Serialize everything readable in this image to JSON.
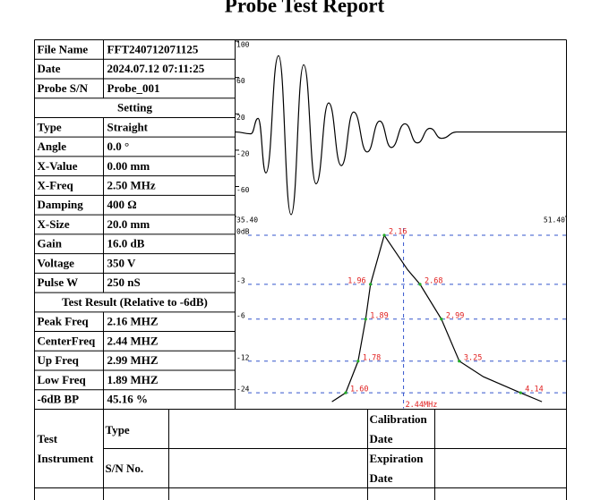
{
  "title": "Probe Test Report",
  "info_table": {
    "rows": [
      [
        "File Name",
        "FFT240712071125"
      ],
      [
        "Date",
        "2024.07.12 07:11:25"
      ],
      [
        "Probe S/N",
        "Probe_001"
      ],
      [
        "Setting"
      ],
      [
        "Type",
        "Straight"
      ],
      [
        "Angle",
        "0.0  °"
      ],
      [
        "X-Value",
        "0.00 mm"
      ],
      [
        "X-Freq",
        "2.50 MHz"
      ],
      [
        "Damping",
        "400 Ω"
      ],
      [
        "X-Size",
        "20.0 mm"
      ],
      [
        "Gain",
        "16.0 dB"
      ],
      [
        "Voltage",
        "350 V"
      ],
      [
        "Pulse W",
        "250 nS"
      ],
      [
        "Test Result (Relative to -6dB)"
      ],
      [
        "Peak Freq",
        "2.16 MHZ"
      ],
      [
        "CenterFreq",
        "2.44 MHZ"
      ],
      [
        "Up Freq",
        "2.99 MHZ"
      ],
      [
        "Low Freq",
        "1.89 MHZ"
      ],
      [
        "-6dB BP",
        "45.16 %"
      ]
    ]
  },
  "waveform": {
    "type": "line",
    "color": "#000000",
    "x": [
      35.4,
      36.14,
      36.49,
      36.87,
      37.48,
      38.09,
      38.7,
      39.3,
      39.91,
      40.52,
      41.12,
      41.77,
      42.38,
      42.94,
      43.6,
      44.2,
      44.81,
      45.37,
      46.11,
      51.4
    ],
    "values": [
      0,
      -2,
      15,
      -45,
      84,
      -91,
      74,
      -57,
      32,
      -37,
      22,
      -22,
      12,
      -17,
      9,
      -12,
      4,
      -7,
      0,
      0
    ],
    "xlim": [
      35.4,
      51.4
    ],
    "ylim": [
      -91,
      102
    ],
    "yticks": [
      100,
      60,
      20,
      -20,
      -60
    ],
    "xticks": [
      {
        "value": 35.4,
        "label": "35.40"
      },
      {
        "value": 51.4,
        "label": "51.40"
      }
    ]
  },
  "spectrum": {
    "type": "line",
    "color": "#000000",
    "y_scale": "amplitude",
    "grid_color": "#3355cc",
    "label_color": "#e02020",
    "marker_color": "#22aa22",
    "xlim": [
      0,
      4.8
    ],
    "yticks": [
      {
        "value": 0,
        "label": "0dB"
      },
      -3,
      -6,
      -12,
      -24
    ],
    "center": {
      "value": 2.44,
      "label": "2.44MHz"
    },
    "freq": [
      1.4,
      1.6,
      1.78,
      1.89,
      1.96,
      2.16,
      2.5,
      2.68,
      2.99,
      3.25,
      3.6,
      4.14,
      4.45
    ],
    "db": [
      -40,
      -24,
      -12,
      -6,
      -3,
      0,
      -2,
      -3,
      -6,
      -12,
      -16,
      -24,
      -40
    ],
    "markers": [
      {
        "value": 2.16,
        "label": "2.16",
        "db": 0
      },
      {
        "value": 1.96,
        "label": "1.96",
        "db": -3
      },
      {
        "value": 2.68,
        "label": "2.68",
        "db": -3
      },
      {
        "value": 1.89,
        "label": "1.89",
        "db": -6
      },
      {
        "value": 2.99,
        "label": "2.99",
        "db": -6
      },
      {
        "value": 1.78,
        "label": "1.78",
        "db": -12
      },
      {
        "value": 3.25,
        "label": "3.25",
        "db": -12
      },
      {
        "value": 1.6,
        "label": "1.60",
        "db": -24
      },
      {
        "value": 4.14,
        "label": "4.14",
        "db": -24
      }
    ]
  },
  "instrument_table": {
    "test": [
      "Test",
      "Instrument"
    ],
    "type": "Type",
    "sn": "S/N No.",
    "calibration": [
      "Calibration",
      "Date"
    ],
    "expiration": [
      "Expiration",
      "Date"
    ]
  }
}
